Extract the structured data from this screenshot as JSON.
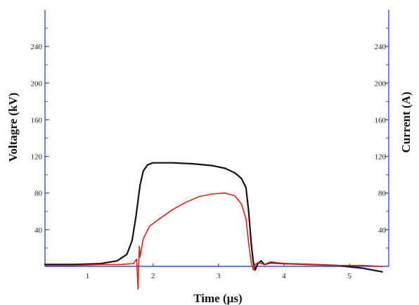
{
  "chart_data": {
    "type": "line",
    "xlabel": "Time (µs)",
    "ylabel_left": "Voltagre (kV)",
    "ylabel_right": "Current (A)",
    "xlim": [
      0.35,
      5.6
    ],
    "ylim_left": [
      0,
      280
    ],
    "ylim_right": [
      0,
      280
    ],
    "x_ticks": [
      1,
      2,
      3,
      4,
      5
    ],
    "y_ticks_left": [
      40,
      80,
      120,
      160,
      200,
      240
    ],
    "y_ticks_right": [
      40,
      80,
      120,
      160,
      200,
      240
    ],
    "grid": false,
    "colors": {
      "axis": "#3a4fc1",
      "voltage": "#111111",
      "current": "#e0201b"
    },
    "series": [
      {
        "axis": "left",
        "color": "#111111",
        "x": [
          0.35,
          0.8,
          1.2,
          1.45,
          1.6,
          1.68,
          1.74,
          1.8,
          1.85,
          1.92,
          2.0,
          2.1,
          2.3,
          2.6,
          2.9,
          3.1,
          3.25,
          3.35,
          3.42,
          3.46,
          3.5,
          3.53,
          3.56,
          3.6,
          3.65,
          3.7,
          3.8,
          4.0,
          4.4,
          4.8,
          5.2,
          5.5
        ],
        "y": [
          2,
          2,
          3,
          6,
          13,
          28,
          55,
          88,
          104,
          111,
          113,
          113,
          113,
          112,
          110,
          107,
          102,
          96,
          86,
          60,
          25,
          5,
          -4,
          3,
          6,
          2,
          4,
          3,
          2,
          1,
          -2,
          -6
        ]
      },
      {
        "axis": "right",
        "color": "#e0201b",
        "x": [
          0.35,
          0.8,
          1.2,
          1.5,
          1.7,
          1.75,
          1.77,
          1.79,
          1.8,
          1.85,
          1.95,
          2.1,
          2.3,
          2.5,
          2.7,
          2.9,
          3.1,
          3.25,
          3.35,
          3.42,
          3.46,
          3.5,
          3.53,
          3.56,
          3.6,
          3.65,
          3.7,
          3.8,
          4.0,
          4.4,
          4.8,
          5.2,
          5.5
        ],
        "y": [
          1,
          1,
          2,
          2,
          3,
          8,
          -25,
          22,
          10,
          30,
          44,
          52,
          62,
          70,
          76,
          79,
          80,
          77,
          68,
          52,
          25,
          4,
          -4,
          2,
          4,
          3,
          2,
          5,
          3,
          2,
          1,
          1,
          0
        ]
      }
    ]
  }
}
